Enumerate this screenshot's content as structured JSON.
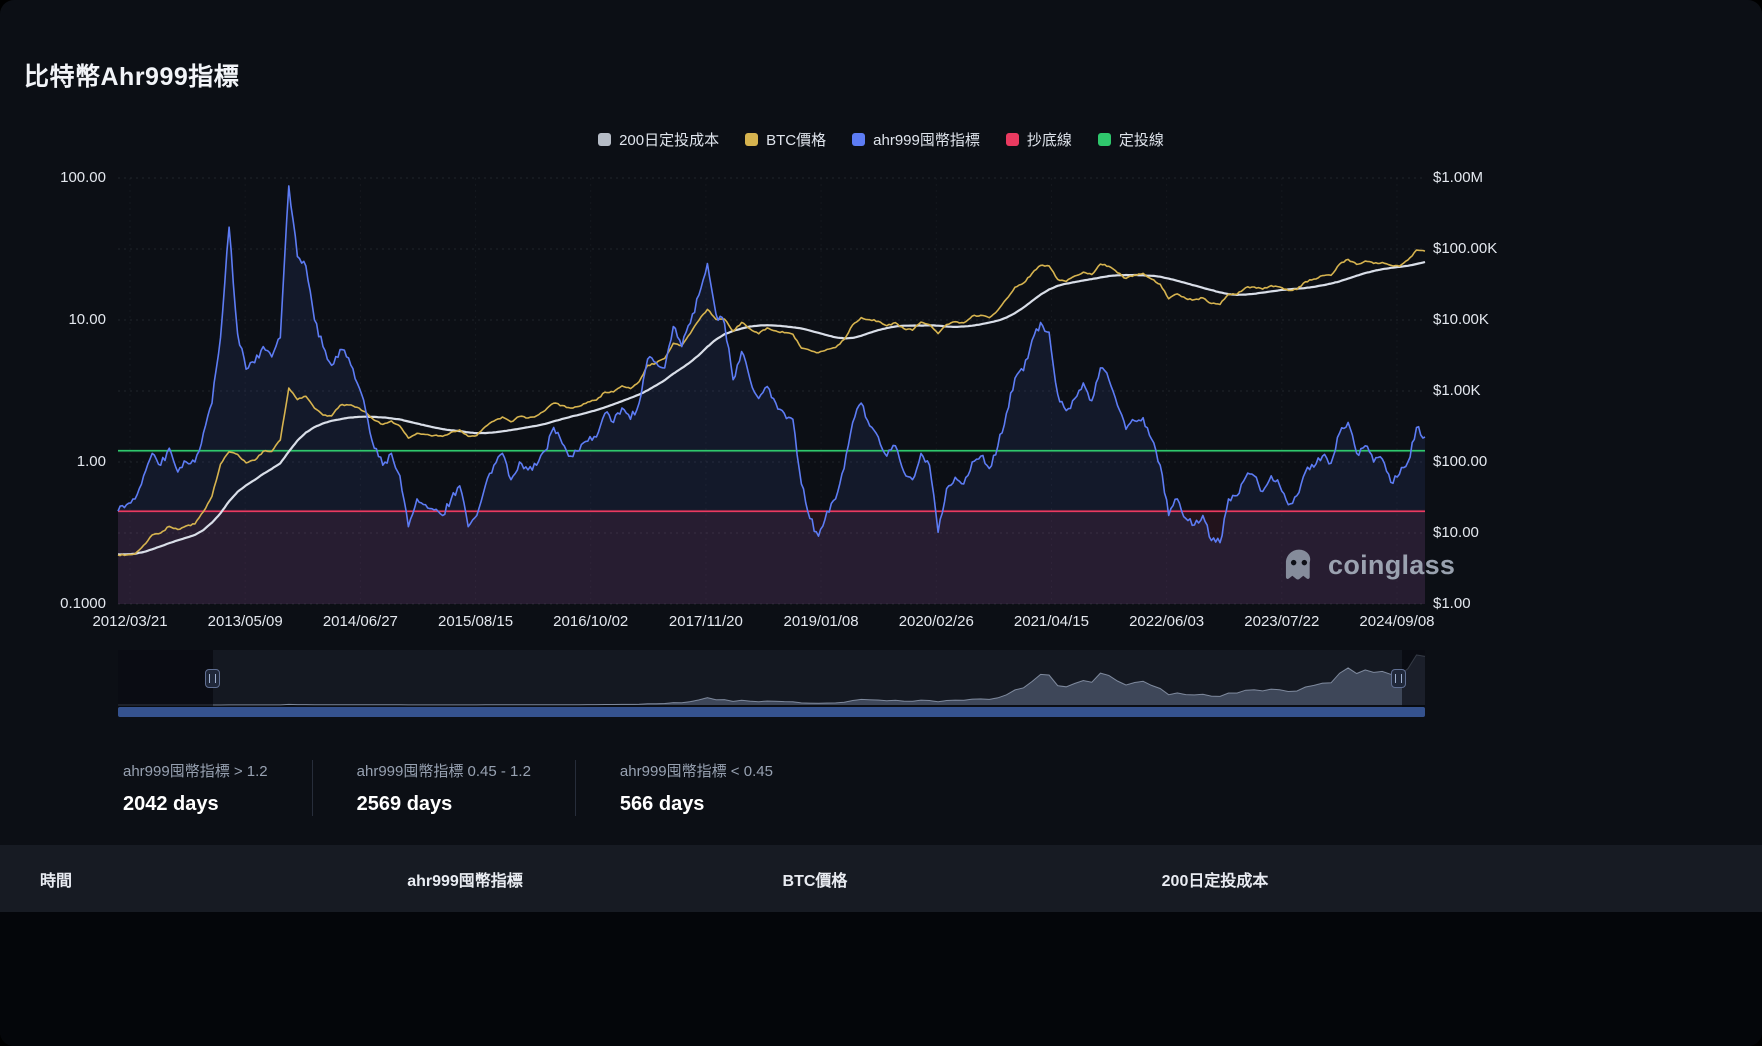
{
  "page": {
    "title": "比特幣Ahr999指標"
  },
  "legend": {
    "items": [
      {
        "label": "200日定投成本",
        "color": "#b6bcc6"
      },
      {
        "label": "BTC價格",
        "color": "#d6b34f"
      },
      {
        "label": "ahr999囤幣指標",
        "color": "#5d7cf4"
      },
      {
        "label": "抄底線",
        "color": "#ea3a60"
      },
      {
        "label": "定投線",
        "color": "#2fc76c"
      }
    ]
  },
  "chart_data": {
    "type": "line",
    "title": "比特幣Ahr999指標",
    "left_axis": {
      "scale": "log",
      "min": 0.1,
      "max": 100,
      "ticks": [
        {
          "label": "100.00",
          "value": 100
        },
        {
          "label": "10.00",
          "value": 10
        },
        {
          "label": "1.00",
          "value": 1
        },
        {
          "label": "0.1000",
          "value": 0.1
        }
      ]
    },
    "right_axis": {
      "scale": "log",
      "min": 1,
      "max": 1000000,
      "ticks": [
        {
          "label": "$1.00M",
          "value": 1000000
        },
        {
          "label": "$100.00K",
          "value": 100000
        },
        {
          "label": "$10.00K",
          "value": 10000
        },
        {
          "label": "$1.00K",
          "value": 1000
        },
        {
          "label": "$100.00",
          "value": 100
        },
        {
          "label": "$10.00",
          "value": 10
        },
        {
          "label": "$1.00",
          "value": 1
        }
      ]
    },
    "x_ticks": [
      "2012/03/21",
      "2013/05/09",
      "2014/06/27",
      "2015/08/15",
      "2016/10/02",
      "2017/11/20",
      "2019/01/08",
      "2020/02/26",
      "2021/04/15",
      "2022/06/03",
      "2023/07/22",
      "2024/09/08"
    ],
    "dates": [
      "2012-03",
      "2012-04",
      "2012-05",
      "2012-06",
      "2012-07",
      "2012-08",
      "2012-09",
      "2012-10",
      "2012-11",
      "2012-12",
      "2013-01",
      "2013-02",
      "2013-03",
      "2013-04",
      "2013-05",
      "2013-06",
      "2013-07",
      "2013-08",
      "2013-09",
      "2013-10",
      "2013-11",
      "2013-12",
      "2014-01",
      "2014-02",
      "2014-03",
      "2014-04",
      "2014-05",
      "2014-06",
      "2014-07",
      "2014-08",
      "2014-09",
      "2014-10",
      "2014-11",
      "2014-12",
      "2015-01",
      "2015-02",
      "2015-03",
      "2015-04",
      "2015-05",
      "2015-06",
      "2015-07",
      "2015-08",
      "2015-09",
      "2015-10",
      "2015-11",
      "2015-12",
      "2016-01",
      "2016-02",
      "2016-03",
      "2016-04",
      "2016-05",
      "2016-06",
      "2016-07",
      "2016-08",
      "2016-09",
      "2016-10",
      "2016-11",
      "2016-12",
      "2017-01",
      "2017-02",
      "2017-03",
      "2017-04",
      "2017-05",
      "2017-06",
      "2017-07",
      "2017-08",
      "2017-09",
      "2017-10",
      "2017-11",
      "2017-12",
      "2018-01",
      "2018-02",
      "2018-03",
      "2018-04",
      "2018-05",
      "2018-06",
      "2018-07",
      "2018-08",
      "2018-09",
      "2018-10",
      "2018-11",
      "2018-12",
      "2019-01",
      "2019-02",
      "2019-03",
      "2019-04",
      "2019-05",
      "2019-06",
      "2019-07",
      "2019-08",
      "2019-09",
      "2019-10",
      "2019-11",
      "2019-12",
      "2020-01",
      "2020-02",
      "2020-03",
      "2020-04",
      "2020-05",
      "2020-06",
      "2020-07",
      "2020-08",
      "2020-09",
      "2020-10",
      "2020-11",
      "2020-12",
      "2021-01",
      "2021-02",
      "2021-03",
      "2021-04",
      "2021-05",
      "2021-06",
      "2021-07",
      "2021-08",
      "2021-09",
      "2021-10",
      "2021-11",
      "2021-12",
      "2022-01",
      "2022-02",
      "2022-03",
      "2022-04",
      "2022-05",
      "2022-06",
      "2022-07",
      "2022-08",
      "2022-09",
      "2022-10",
      "2022-11",
      "2022-12",
      "2023-01",
      "2023-02",
      "2023-03",
      "2023-04",
      "2023-05",
      "2023-06",
      "2023-07",
      "2023-08",
      "2023-09",
      "2023-10",
      "2023-11",
      "2023-12",
      "2024-01",
      "2024-02",
      "2024-03",
      "2024-04",
      "2024-05",
      "2024-06",
      "2024-07",
      "2024-08",
      "2024-09",
      "2024-10",
      "2024-11",
      "2024-12"
    ],
    "series": [
      {
        "name": "200日定投成本",
        "axis": "right",
        "color": "#d9dee8",
        "values": [
          5.0,
          5.0,
          5.1,
          5.4,
          5.9,
          6.5,
          7.2,
          7.9,
          8.6,
          9.4,
          11,
          14,
          19,
          28,
          38,
          47,
          56,
          68,
          80,
          96,
          140,
          200,
          260,
          310,
          350,
          380,
          400,
          420,
          430,
          435,
          432,
          424,
          412,
          398,
          372,
          348,
          326,
          307,
          291,
          280,
          272,
          262,
          255,
          255,
          261,
          271,
          281,
          294,
          309,
          324,
          344,
          374,
          404,
          434,
          464,
          499,
          539,
          589,
          649,
          719,
          799,
          889,
          1020,
          1200,
          1420,
          1750,
          2100,
          2550,
          3200,
          4200,
          5300,
          6300,
          7000,
          7600,
          8100,
          8350,
          8450,
          8350,
          8150,
          7900,
          7600,
          7100,
          6600,
          6100,
          5700,
          5500,
          5600,
          6000,
          6600,
          7200,
          7700,
          8100,
          8300,
          8350,
          8350,
          8400,
          8300,
          8100,
          8000,
          8100,
          8300,
          8700,
          9200,
          9800,
          10800,
          12500,
          15000,
          18500,
          22800,
          27000,
          30300,
          32500,
          34200,
          36000,
          37700,
          39800,
          41600,
          42600,
          43000,
          43000,
          42600,
          41900,
          40700,
          38300,
          35700,
          33100,
          30700,
          28400,
          26400,
          24500,
          23200,
          22600,
          22800,
          23400,
          24300,
          25300,
          26300,
          27000,
          27600,
          28200,
          29300,
          30800,
          32600,
          35000,
          38300,
          42000,
          45700,
          49000,
          51900,
          54300,
          56000,
          58000,
          61500,
          65500
        ]
      },
      {
        "name": "BTC價格",
        "axis": "right",
        "color": "#d6b34f",
        "values": [
          4.9,
          4.9,
          5.1,
          6.7,
          9.4,
          10,
          12.4,
          11.2,
          12.6,
          13.4,
          20,
          33,
          93,
          139,
          128,
          97,
          106,
          141,
          141,
          204,
          1100,
          757,
          841,
          573,
          458,
          446,
          627,
          635,
          589,
          506,
          388,
          338,
          378,
          320,
          217,
          254,
          244,
          236,
          230,
          263,
          284,
          230,
          236,
          314,
          377,
          430,
          368,
          437,
          416,
          448,
          531,
          673,
          624,
          575,
          609,
          700,
          745,
          963,
          970,
          1180,
          1080,
          1350,
          2300,
          2480,
          2875,
          4700,
          4360,
          6450,
          9900,
          14100,
          10200,
          10300,
          6930,
          9240,
          7490,
          6400,
          7730,
          7030,
          6630,
          6300,
          4020,
          3740,
          3460,
          3850,
          4100,
          5320,
          8560,
          10800,
          10100,
          9600,
          8300,
          9200,
          7560,
          7190,
          9350,
          8600,
          6440,
          8630,
          9450,
          9140,
          11350,
          11650,
          10780,
          13800,
          19700,
          29000,
          33100,
          45200,
          58800,
          57750,
          37300,
          35000,
          41600,
          47100,
          43800,
          61300,
          57000,
          46200,
          38500,
          43200,
          45500,
          37700,
          31800,
          19900,
          23300,
          20050,
          19400,
          20500,
          17100,
          16550,
          23100,
          23100,
          28500,
          29200,
          27200,
          30500,
          29200,
          26000,
          26900,
          34600,
          37700,
          42200,
          42600,
          61200,
          71300,
          60600,
          67500,
          62700,
          64600,
          59000,
          57000,
          69900,
          96400,
          93400
        ]
      },
      {
        "name": "ahr999囤幣指標",
        "axis": "left",
        "color": "#5d7cf4",
        "area_color": "rgba(90,120,240,0.10)",
        "values": [
          0.45,
          0.5,
          0.55,
          0.8,
          1.15,
          0.95,
          1.25,
          0.85,
          1.0,
          1.0,
          1.6,
          2.6,
          7.5,
          45,
          8,
          4.5,
          5,
          6.5,
          5.5,
          7.5,
          88,
          28,
          24,
          10,
          6.5,
          4.8,
          6.2,
          5.4,
          3.6,
          2.3,
          1.25,
          0.95,
          1.15,
          0.8,
          0.35,
          0.55,
          0.5,
          0.46,
          0.42,
          0.55,
          0.68,
          0.35,
          0.42,
          0.68,
          0.95,
          1.15,
          0.75,
          1.0,
          0.88,
          0.95,
          1.2,
          1.75,
          1.35,
          1.1,
          1.2,
          1.4,
          1.5,
          2.2,
          1.9,
          2.4,
          2.0,
          2.6,
          5.3,
          5.0,
          4.6,
          9.0,
          6.5,
          9.5,
          15,
          25,
          11,
          9.5,
          3.8,
          6.0,
          3.8,
          2.8,
          3.4,
          2.6,
          2.2,
          2.0,
          0.7,
          0.4,
          0.3,
          0.45,
          0.55,
          0.9,
          1.9,
          2.6,
          1.8,
          1.5,
          1.1,
          1.3,
          0.85,
          0.75,
          1.15,
          0.95,
          0.32,
          0.65,
          0.78,
          0.7,
          1.0,
          1.1,
          0.9,
          1.3,
          2.2,
          3.9,
          4.4,
          7.2,
          9.6,
          8.2,
          3.0,
          2.3,
          2.8,
          3.6,
          2.7,
          4.6,
          3.8,
          2.5,
          1.7,
          1.95,
          2.05,
          1.45,
          0.95,
          0.42,
          0.55,
          0.4,
          0.36,
          0.42,
          0.28,
          0.27,
          0.55,
          0.58,
          0.78,
          0.8,
          0.62,
          0.8,
          0.68,
          0.5,
          0.58,
          0.85,
          0.92,
          1.1,
          0.98,
          1.6,
          1.9,
          1.15,
          1.3,
          1.0,
          1.05,
          0.72,
          0.82,
          1.0,
          1.75,
          1.5
        ]
      }
    ],
    "reference_lines": [
      {
        "name": "抄底線",
        "axis": "left",
        "value": 0.45,
        "color": "#ea3a60",
        "zone_fill": "rgba(233,60,100,0.10)"
      },
      {
        "name": "定投線",
        "axis": "left",
        "value": 1.2,
        "color": "#2fc76c"
      }
    ]
  },
  "watermark": {
    "text": "coinglass"
  },
  "stats": [
    {
      "label": "ahr999囤幣指標 > 1.2",
      "value": "2042 days"
    },
    {
      "label": "ahr999囤幣指標 0.45 - 1.2",
      "value": "2569 days"
    },
    {
      "label": "ahr999囤幣指標 < 0.45",
      "value": "566 days"
    }
  ],
  "table": {
    "headers": [
      "時間",
      "ahr999囤幣指標",
      "BTC價格",
      "200日定投成本"
    ]
  }
}
